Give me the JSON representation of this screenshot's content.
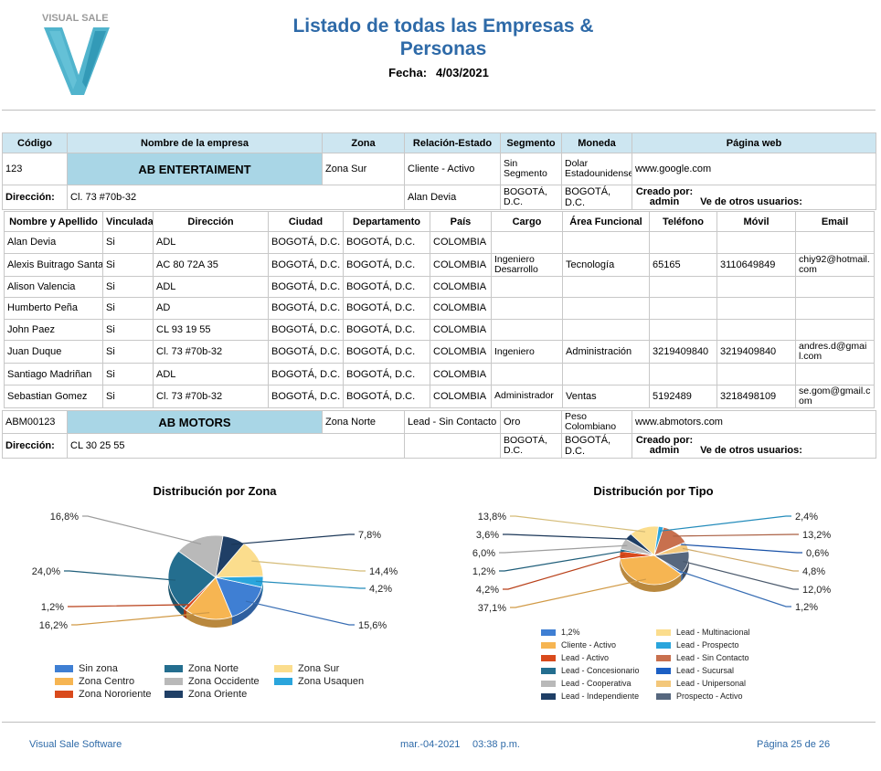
{
  "header": {
    "logo_text": "VISUAL SALE",
    "title": "Listado de todas las Empresas & Personas",
    "fecha_label": "Fecha:",
    "fecha_value": "4/03/2021"
  },
  "company_table": {
    "headers": [
      "Código",
      "Nombre de la empresa",
      "Zona",
      "Relación-Estado",
      "Segmento",
      "Moneda",
      "Página web"
    ],
    "direccion_label": "Dirección:",
    "creado_por_label": "Creado por:",
    "creado_por_value": "admin",
    "ve_otros_label": "Ve de otros usuarios:"
  },
  "companies": [
    {
      "codigo": "123",
      "nombre": "AB ENTERTAIMENT",
      "zona": "Zona Sur",
      "relacion": "Cliente - Activo",
      "segmento": "Sin Segmento",
      "moneda": "Dolar Estadounidense",
      "web": "www.google.com",
      "direccion": "Cl. 73 #70b-32",
      "contacto": "Alan Devia",
      "ciudad": "BOGOTÁ, D.C.",
      "departamento": "BOGOTÁ, D.C."
    },
    {
      "codigo": "ABM00123",
      "nombre": "AB MOTORS",
      "zona": "Zona Norte",
      "relacion": "Lead - Sin Contacto",
      "segmento": "Oro",
      "moneda": "Peso Colombiano",
      "web": "www.abmotors.com",
      "direccion": "CL 30 25 55",
      "contacto": "",
      "ciudad": "BOGOTÁ, D.C.",
      "departamento": "BOGOTÁ, D.C."
    }
  ],
  "people_table": {
    "headers": [
      "Nombre y Apellido",
      "Vinculada",
      "Dirección",
      "Ciudad",
      "Departamento",
      "País",
      "Cargo",
      "Área Funcional",
      "Teléfono",
      "Móvil",
      "Email"
    ],
    "rows": [
      [
        "Alan Devia",
        "Si",
        "ADL",
        "BOGOTÁ, D.C.",
        "BOGOTÁ, D.C.",
        "COLOMBIA",
        "",
        "",
        "",
        "",
        ""
      ],
      [
        "Alexis Buitrago Santa",
        "Si",
        "AC 80 72A 35",
        "BOGOTÁ, D.C.",
        "BOGOTÁ, D.C.",
        "COLOMBIA",
        "Ingeniero Desarrollo",
        "Tecnología",
        "65165",
        "3110649849",
        "chiy92@hotmail.com"
      ],
      [
        "Alison Valencia",
        "Si",
        "ADL",
        "BOGOTÁ, D.C.",
        "BOGOTÁ, D.C.",
        "COLOMBIA",
        "",
        "",
        "",
        "",
        ""
      ],
      [
        "Humberto Peña",
        "Si",
        "AD",
        "BOGOTÁ, D.C.",
        "BOGOTÁ, D.C.",
        "COLOMBIA",
        "",
        "",
        "",
        "",
        ""
      ],
      [
        "John Paez",
        "Si",
        "CL 93 19 55",
        "BOGOTÁ, D.C.",
        "BOGOTÁ, D.C.",
        "COLOMBIA",
        "",
        "",
        "",
        "",
        ""
      ],
      [
        "Juan Duque",
        "Si",
        "Cl. 73 #70b-32",
        "BOGOTÁ, D.C.",
        "BOGOTÁ, D.C.",
        "COLOMBIA",
        "Ingeniero",
        "Administración",
        "3219409840",
        "3219409840",
        "andres.d@gmail.com"
      ],
      [
        "Santiago Madriñan",
        "Si",
        "ADL",
        "BOGOTÁ, D.C.",
        "BOGOTÁ, D.C.",
        "COLOMBIA",
        "",
        "",
        "",
        "",
        ""
      ],
      [
        "Sebastian Gomez",
        "Si",
        "Cl. 73 #70b-32",
        "BOGOTÁ, D.C.",
        "BOGOTÁ, D.C.",
        "COLOMBIA",
        "Administrador",
        "Ventas",
        "5192489",
        "3218498109",
        "se.gom@gmail.com"
      ]
    ]
  },
  "chart_data": [
    {
      "type": "pie",
      "title": "Distribución por Zona",
      "categories": [
        "Sin zona",
        "Zona Centro",
        "Zona Nororiente",
        "Zona Norte",
        "Zona Occidente",
        "Zona Oriente",
        "Zona Sur",
        "Zona Usaquen"
      ],
      "values": [
        15.6,
        16.2,
        1.2,
        24.0,
        16.8,
        7.8,
        14.4,
        4.2
      ],
      "labels": [
        "15,6%",
        "16,2%",
        "1,2%",
        "24,0%",
        "16,8%",
        "7,8%",
        "14,4%",
        "4,2%"
      ],
      "colors": [
        "#3f7fd3",
        "#f6b552",
        "#d94a1c",
        "#246e8f",
        "#b9b9b9",
        "#1f3f66",
        "#fbdd8d",
        "#2aa5dc"
      ],
      "legend_position": "bottom"
    },
    {
      "type": "pie",
      "title": "Distribución por Tipo",
      "categories": [
        "1,2%",
        "Cliente - Activo",
        "Lead - Activo",
        "Lead - Concesionario",
        "Lead - Cooperativa",
        "Lead - Independiente",
        "Lead - Multinacional",
        "Lead - Prospecto",
        "Lead - Sin Contacto",
        "Lead - Sucursal",
        "Lead - Unipersonal",
        "Prospecto - Activo"
      ],
      "values": [
        1.2,
        37.1,
        4.2,
        1.2,
        6.0,
        3.6,
        13.8,
        2.4,
        13.2,
        0.6,
        4.8,
        12.0
      ],
      "labels": [
        "1,2%",
        "37,1%",
        "4,2%",
        "1,2%",
        "6,0%",
        "3,6%",
        "13,8%",
        "2,4%",
        "13,2%",
        "0,6%",
        "4,8%",
        "12,0%"
      ],
      "colors": [
        "#3f7fd3",
        "#f6b552",
        "#d94a1c",
        "#246e8f",
        "#b9b9b9",
        "#1f3f66",
        "#fbdd8d",
        "#2aa5dc",
        "#c8704e",
        "#1c5fc4",
        "#f3c77a",
        "#56677e"
      ],
      "legend_position": "bottom"
    }
  ],
  "footer": {
    "left": "Visual Sale Software",
    "date": "mar.-04-2021",
    "time": "03:38 p.m.",
    "page": "Página 25 de 26"
  }
}
